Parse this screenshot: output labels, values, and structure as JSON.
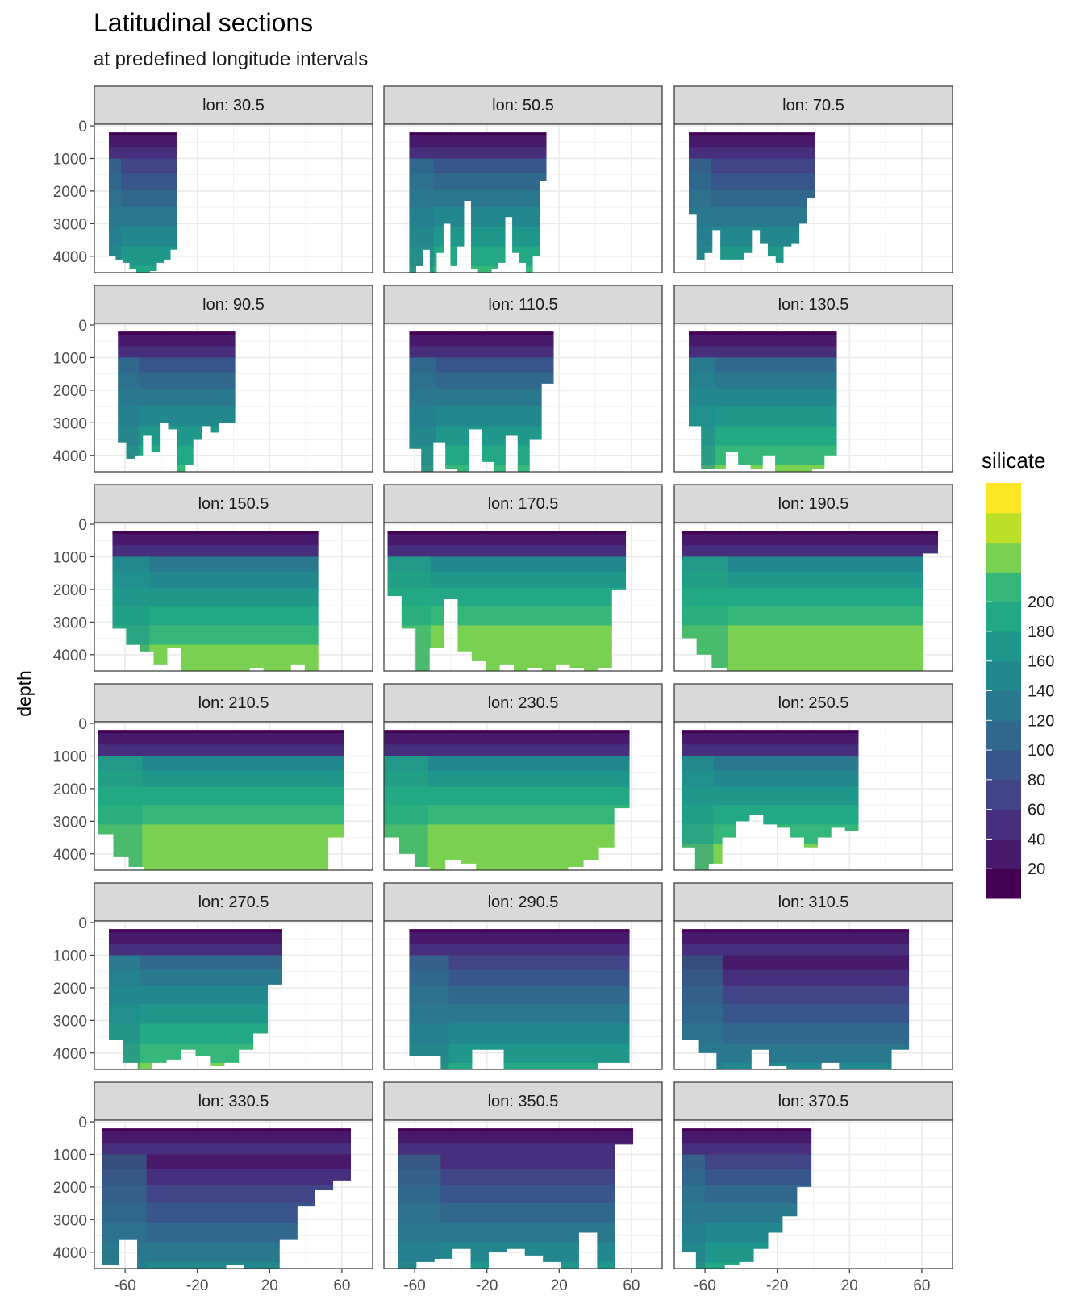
{
  "title": "Latitudinal sections",
  "subtitle": "at predefined longitude intervals",
  "chart_data": {
    "type": "heatmap",
    "title": "Latitudinal sections",
    "subtitle": "at predefined longitude intervals",
    "xlabel": "",
    "ylabel": "depth",
    "x_ticks": [
      -60,
      -20,
      20,
      60
    ],
    "y_ticks": [
      0,
      1000,
      2000,
      3000,
      4000
    ],
    "xlim": [
      -77,
      77
    ],
    "ylim": [
      4500,
      -50
    ],
    "y_reversed": true,
    "grid": true,
    "legend": {
      "title": "silicate",
      "position": "right",
      "levels": [
        {
          "label": "",
          "color": "#440154"
        },
        {
          "label": "20",
          "color": "#481A6C"
        },
        {
          "label": "40",
          "color": "#472F7D"
        },
        {
          "label": "60",
          "color": "#414487"
        },
        {
          "label": "80",
          "color": "#39568C"
        },
        {
          "label": "100",
          "color": "#31688E"
        },
        {
          "label": "120",
          "color": "#2A788E"
        },
        {
          "label": "140",
          "color": "#23888E"
        },
        {
          "label": "160",
          "color": "#1F988B"
        },
        {
          "label": "180",
          "color": "#22A884"
        },
        {
          "label": "200",
          "color": "#35B779"
        },
        {
          "label": "",
          "color": "#7AD151"
        },
        {
          "label": "",
          "color": "#BBDF27"
        },
        {
          "label": "",
          "color": "#FDE725"
        }
      ]
    },
    "panels": [
      {
        "label": "lon: 30.5",
        "extent": [
          -69,
          -31
        ],
        "bottom": [
          4000,
          4100,
          4200,
          4400,
          4500,
          4500,
          4450,
          4200,
          4100,
          3800
        ]
      },
      {
        "label": "lon: 50.5",
        "extent": [
          -63,
          13
        ],
        "bottom": [
          4500,
          4300,
          3800,
          4500,
          3900,
          3000,
          4300,
          3700,
          2300,
          4400,
          4500,
          4500,
          4400,
          4200,
          2800,
          3900,
          4200,
          4500,
          4000,
          1700
        ]
      },
      {
        "label": "lon: 70.5",
        "extent": [
          -69,
          1
        ],
        "bottom": [
          2700,
          4100,
          3900,
          3200,
          4100,
          4100,
          4100,
          3900,
          3200,
          3600,
          4000,
          4200,
          3700,
          3600,
          3000,
          2200
        ]
      },
      {
        "label": "lon: 90.5",
        "extent": [
          -64,
          1
        ],
        "bottom": [
          3600,
          4100,
          4000,
          3400,
          3900,
          3000,
          3200,
          4500,
          4300,
          3500,
          3100,
          3300,
          3000,
          3000
        ]
      },
      {
        "label": "lon: 110.5",
        "extent": [
          -63,
          17
        ],
        "bottom": [
          3800,
          4500,
          3600,
          4400,
          4500,
          3200,
          4200,
          4500,
          3400,
          4500,
          3500,
          1800
        ]
      },
      {
        "label": "lon: 130.5",
        "extent": [
          -69,
          13
        ],
        "bottom": [
          3100,
          4400,
          4400,
          3900,
          4300,
          4400,
          4000,
          4500,
          4500,
          4500,
          4400,
          4000
        ]
      },
      {
        "label": "lon: 150.5",
        "extent": [
          -67,
          47
        ],
        "bottom": [
          3200,
          3700,
          3900,
          4300,
          3800,
          4500,
          4500,
          4500,
          4500,
          4500,
          4400,
          4500,
          4500,
          4300,
          4500
        ]
      },
      {
        "label": "lon: 170.5",
        "extent": [
          -75,
          57
        ],
        "bottom": [
          2200,
          3200,
          4500,
          3800,
          2300,
          3900,
          4200,
          4500,
          4300,
          4500,
          4400,
          4500,
          4300,
          4400,
          4500,
          4400,
          2000
        ]
      },
      {
        "label": "lon: 190.5",
        "extent": [
          -73,
          69
        ],
        "bottom": [
          3500,
          4000,
          4400,
          4500,
          4500,
          4500,
          4500,
          4500,
          4500,
          4500,
          4500,
          4500,
          4500,
          4500,
          4500,
          4500,
          900
        ]
      },
      {
        "label": "lon: 210.5",
        "extent": [
          -75,
          61
        ],
        "bottom": [
          3400,
          4100,
          4400,
          4500,
          4500,
          4500,
          4500,
          4500,
          4500,
          4500,
          4500,
          4500,
          4500,
          4500,
          4500,
          3500
        ]
      },
      {
        "label": "lon: 230.5",
        "extent": [
          -77,
          59
        ],
        "bottom": [
          3500,
          4000,
          4400,
          4500,
          4200,
          4300,
          4500,
          4500,
          4500,
          4500,
          4500,
          4500,
          4400,
          4200,
          3800,
          2600
        ]
      },
      {
        "label": "lon: 250.5",
        "extent": [
          -73,
          25
        ],
        "bottom": [
          3800,
          4500,
          4300,
          3500,
          3000,
          2800,
          3100,
          3200,
          3500,
          3800,
          3500,
          3200,
          3300
        ]
      },
      {
        "label": "lon: 270.5",
        "extent": [
          -69,
          27
        ],
        "bottom": [
          3600,
          4300,
          4500,
          4300,
          4200,
          3900,
          4100,
          4400,
          4300,
          3900,
          3400,
          1900
        ]
      },
      {
        "label": "lon: 290.5",
        "extent": [
          -63,
          59
        ],
        "bottom": [
          4100,
          4500,
          3900,
          4500,
          4500,
          4500,
          4300
        ]
      },
      {
        "label": "lon: 310.5",
        "extent": [
          -73,
          53
        ],
        "bottom": [
          3600,
          4000,
          4500,
          4500,
          3900,
          4400,
          4500,
          4500,
          4300,
          4500,
          4500,
          4500,
          3900
        ]
      },
      {
        "label": "lon: 330.5",
        "extent": [
          -73,
          65
        ],
        "bottom": [
          4400,
          3600,
          4500,
          4500,
          4500,
          4500,
          4500,
          4400,
          4500,
          4500,
          3600,
          2600,
          2100,
          1800
        ]
      },
      {
        "label": "lon: 350.5",
        "extent": [
          -69,
          61
        ],
        "bottom": [
          4500,
          4300,
          4200,
          3900,
          4500,
          4000,
          3900,
          4100,
          4300,
          4500,
          3400,
          4500,
          700
        ]
      },
      {
        "label": "lon: 370.5",
        "extent": [
          -73,
          -1
        ],
        "bottom": [
          4000,
          4500,
          4500,
          4400,
          4300,
          3900,
          3400,
          2900,
          2000
        ]
      }
    ]
  }
}
